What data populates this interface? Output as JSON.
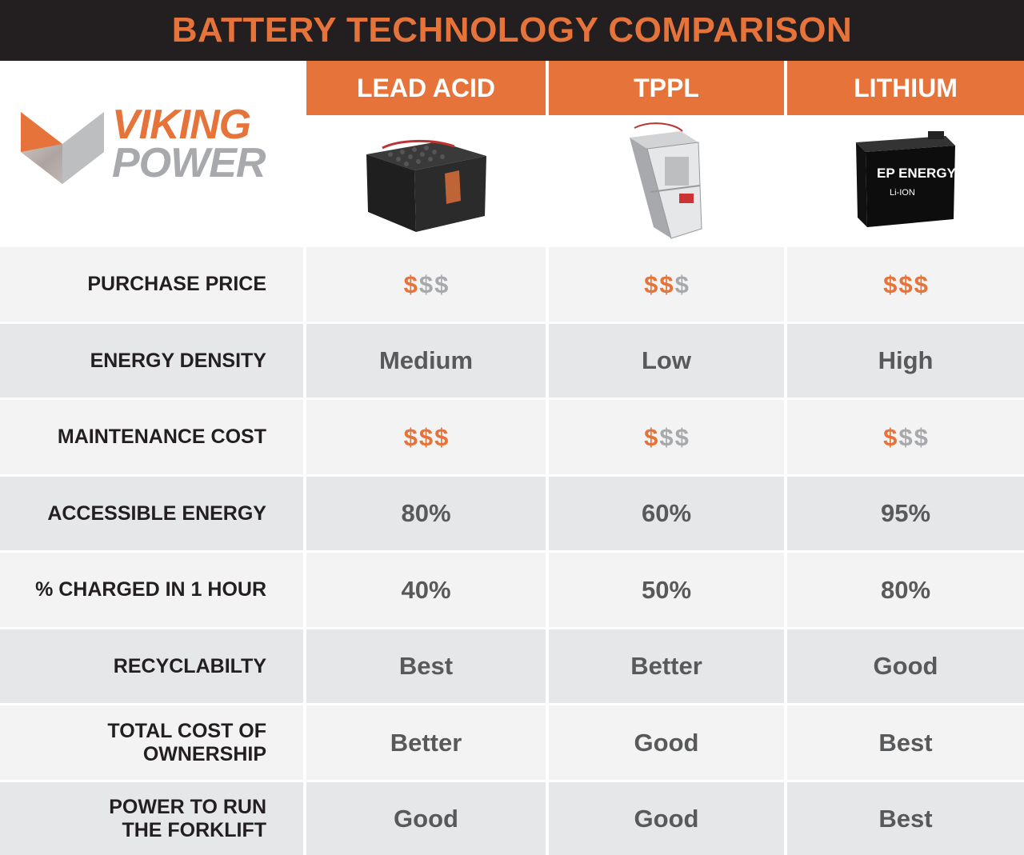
{
  "title": "BATTERY TECHNOLOGY COMPARISON",
  "logo": {
    "line1": "VIKING",
    "line2": "POWER"
  },
  "columns": [
    {
      "label": "LEAD ACID"
    },
    {
      "label": "TPPL"
    },
    {
      "label": "LITHIUM"
    }
  ],
  "battery_images": {
    "lithium_brand": "EP ENERGY",
    "lithium_model": "Li-ION"
  },
  "rows": [
    {
      "label": "PURCHASE PRICE",
      "kind": "dollars",
      "filled": [
        1,
        2,
        3
      ]
    },
    {
      "label": "ENERGY DENSITY",
      "values": [
        "Medium",
        "Low",
        "High"
      ]
    },
    {
      "label": "MAINTENANCE COST",
      "kind": "dollars",
      "filled": [
        3,
        1,
        1
      ]
    },
    {
      "label": "ACCESSIBLE ENERGY",
      "values": [
        "80%",
        "60%",
        "95%"
      ]
    },
    {
      "label": "% CHARGED IN 1 HOUR",
      "values": [
        "40%",
        "50%",
        "80%"
      ]
    },
    {
      "label": "RECYCLABILTY",
      "values": [
        "Best",
        "Better",
        "Good"
      ]
    },
    {
      "label": "TOTAL COST OF OWNERSHIP",
      "values": [
        "Better",
        "Good",
        "Best"
      ]
    },
    {
      "label": "POWER TO RUN THE FORKLIFT",
      "values": [
        "Good",
        "Good",
        "Best"
      ]
    }
  ],
  "dollar_symbol": "$",
  "colors": {
    "accent": "#e5733a",
    "title_bg": "#231f20",
    "muted": "#a7a9ac"
  }
}
